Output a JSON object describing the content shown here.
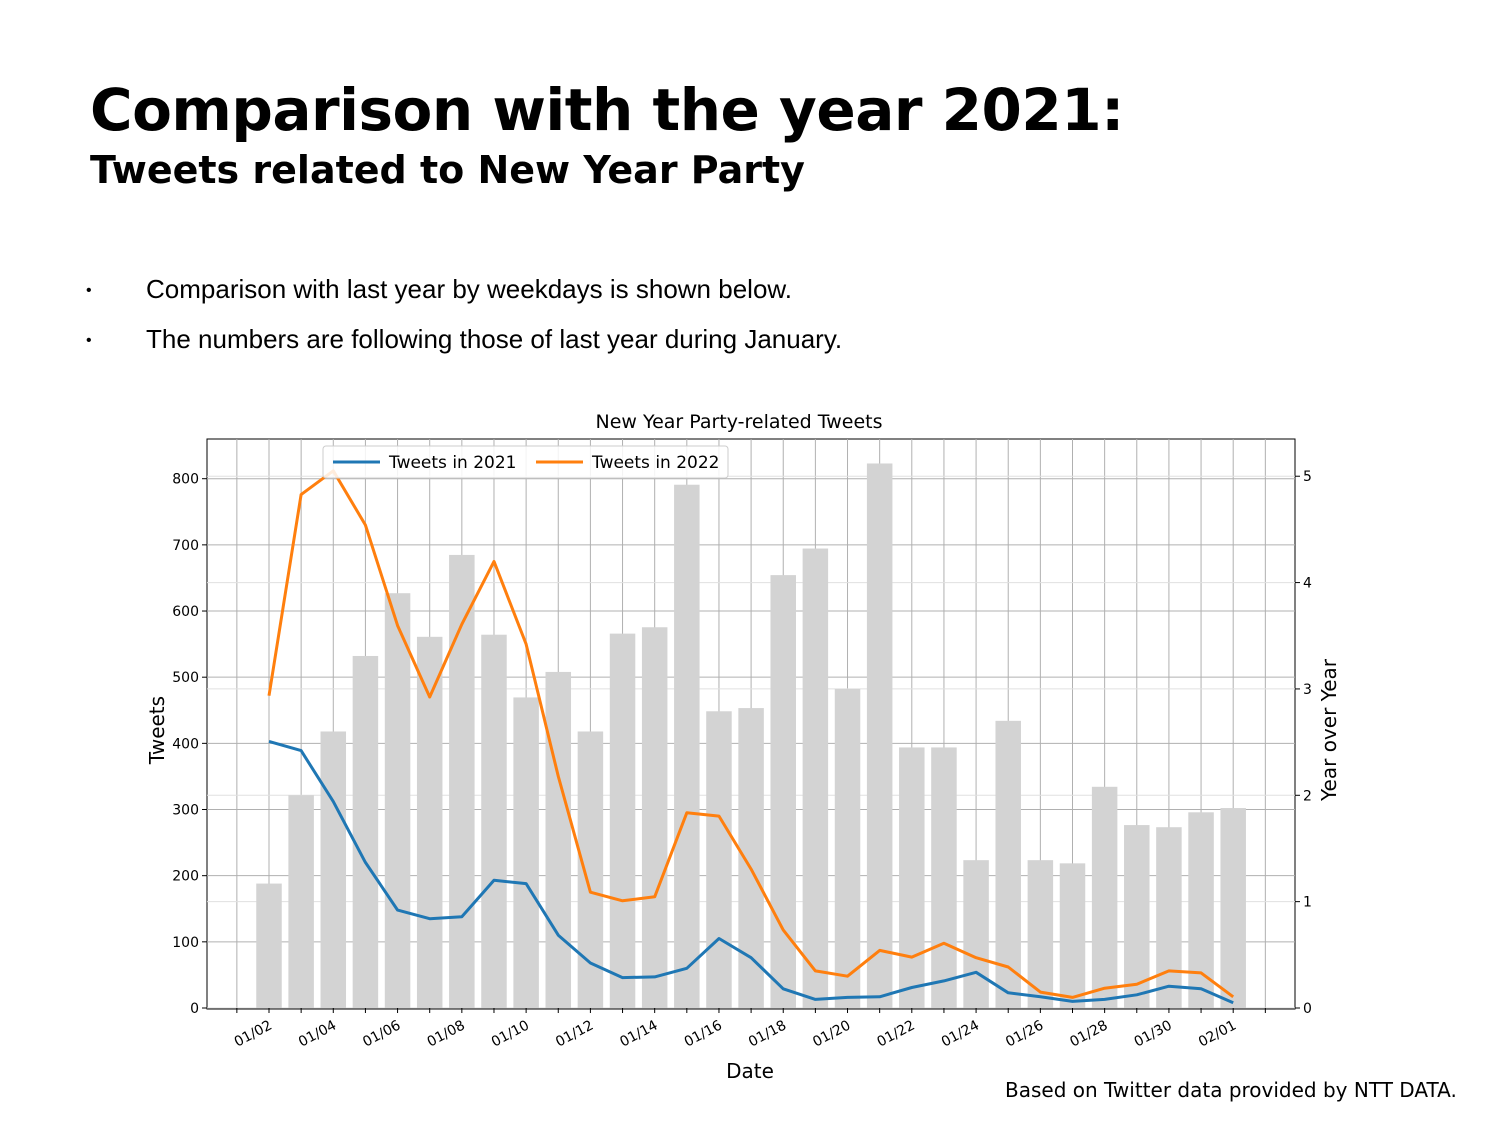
{
  "slide": {
    "title": "Comparison with the year 2021:",
    "subtitle": "Tweets related to New Year Party",
    "bullets": [
      "Comparison with last year by weekdays is shown below.",
      "The numbers are following those of last year during January."
    ],
    "credit": "Based on Twitter data provided by NTT DATA."
  },
  "chart_data": {
    "type": "bar+line",
    "title": "New Year Party-related Tweets",
    "xlabel": "Date",
    "ylabel": "Tweets",
    "y2label": "Year over Year",
    "ylim": [
      0,
      860
    ],
    "y2lim": [
      0,
      5.35
    ],
    "yticks": [
      0,
      100,
      200,
      300,
      400,
      500,
      600,
      700,
      800
    ],
    "y2ticks": [
      0,
      1,
      2,
      3,
      4,
      5
    ],
    "xtick_labels": [
      "01/02",
      "01/04",
      "01/06",
      "01/08",
      "01/10",
      "01/12",
      "01/14",
      "01/16",
      "01/18",
      "01/20",
      "01/22",
      "01/24",
      "01/26",
      "01/28",
      "01/30",
      "02/01"
    ],
    "grid": true,
    "legend_position": "top-left",
    "dates": [
      "01/02",
      "01/03",
      "01/04",
      "01/05",
      "01/06",
      "01/07",
      "01/08",
      "01/09",
      "01/10",
      "01/11",
      "01/12",
      "01/13",
      "01/14",
      "01/15",
      "01/16",
      "01/17",
      "01/18",
      "01/19",
      "01/20",
      "01/21",
      "01/22",
      "01/23",
      "01/24",
      "01/25",
      "01/26",
      "01/27",
      "01/28",
      "01/29",
      "01/30",
      "01/31",
      "02/01"
    ],
    "bars": {
      "axis": "right",
      "color": "#d3d3d3",
      "values": [
        1.17,
        2.0,
        2.6,
        3.31,
        3.9,
        3.49,
        4.26,
        3.51,
        2.92,
        3.16,
        2.6,
        3.52,
        3.58,
        4.92,
        2.79,
        2.82,
        4.07,
        4.32,
        3.0,
        5.12,
        2.45,
        2.45,
        1.39,
        2.7,
        1.39,
        1.36,
        2.08,
        1.72,
        1.7,
        1.84,
        1.88
      ]
    },
    "series": [
      {
        "name": "Tweets in 2021",
        "axis": "left",
        "color": "#1f77b4",
        "values": [
          403,
          389,
          312,
          220,
          148,
          135,
          138,
          193,
          188,
          110,
          68,
          46,
          47,
          60,
          105,
          76,
          29,
          13,
          16,
          17,
          31,
          41,
          54,
          23,
          17,
          10,
          13,
          20,
          33,
          29,
          8
        ]
      },
      {
        "name": "Tweets in 2022",
        "axis": "left",
        "color": "#ff7f0e",
        "values": [
          472,
          776,
          812,
          730,
          578,
          470,
          580,
          675,
          550,
          350,
          175,
          162,
          168,
          295,
          290,
          210,
          118,
          56,
          48,
          87,
          77,
          98,
          76,
          62,
          24,
          16,
          30,
          36,
          56,
          53,
          17
        ]
      }
    ]
  }
}
